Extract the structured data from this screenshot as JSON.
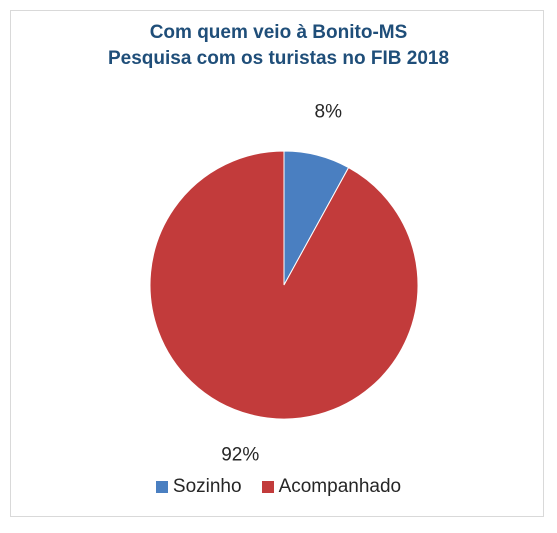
{
  "chart_data": {
    "type": "pie",
    "title_line1": "Com quem veio à Bonito-MS",
    "title_line2": "Pesquisa com os turistas no FIB 2018",
    "slices": [
      {
        "label": "Sozinho",
        "value": 8,
        "data_label": "8%",
        "color": "#4a7fc1"
      },
      {
        "label": "Acompanhado",
        "value": 92,
        "data_label": "92%",
        "color": "#c23b3b"
      }
    ],
    "start_angle_deg": 0,
    "direction": "clockwise",
    "legend_position": "bottom"
  }
}
